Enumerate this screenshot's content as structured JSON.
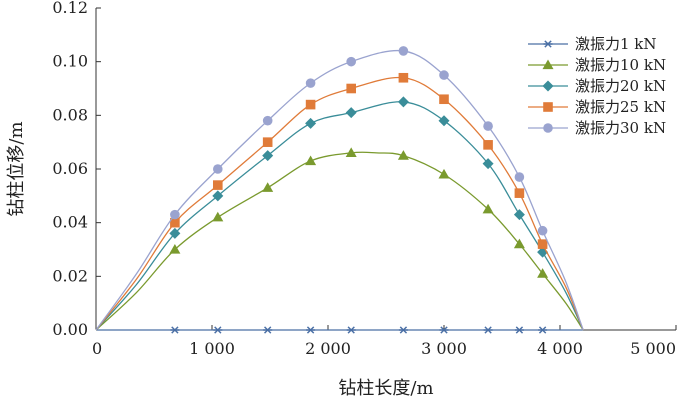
{
  "chart_data": {
    "type": "line",
    "xlabel": "钻柱长度/m",
    "ylabel": "钻柱位移/m",
    "xlim": [
      0,
      5000
    ],
    "ylim": [
      0,
      0.12
    ],
    "xticks": [
      0,
      1000,
      2000,
      3000,
      4000,
      5000
    ],
    "xtick_labels": [
      "0",
      "1 000",
      "2 000",
      "3 000",
      "4 000",
      "5 000"
    ],
    "yticks": [
      0,
      0.02,
      0.04,
      0.06,
      0.08,
      0.1,
      0.12
    ],
    "ytick_labels": [
      "0.00",
      "0.02",
      "0.04",
      "0.06",
      "0.08",
      "0.10",
      "0.12"
    ],
    "grid": false,
    "legend_position": "top-right",
    "series": [
      {
        "name": "激振力1 kN",
        "color": "#4a6fa5",
        "marker": "asterisk",
        "x": [
          0,
          680,
          1050,
          1480,
          1850,
          2200,
          2650,
          3000,
          3380,
          3650,
          3850,
          4200
        ],
        "y": [
          0,
          0,
          0,
          0,
          0,
          0,
          0,
          0,
          0,
          0,
          0,
          0
        ],
        "marker_x": [
          680,
          1050,
          1480,
          1850,
          2200,
          2650,
          3000,
          3380,
          3650,
          3850
        ]
      },
      {
        "name": "激振力10 kN",
        "color": "#7a9a2e",
        "marker": "triangle",
        "x": [
          0,
          350,
          680,
          1050,
          1480,
          1850,
          2200,
          2420,
          2650,
          3000,
          3380,
          3650,
          3850,
          4050,
          4200
        ],
        "y": [
          0,
          0.014,
          0.03,
          0.042,
          0.053,
          0.063,
          0.066,
          0.066,
          0.065,
          0.058,
          0.045,
          0.032,
          0.021,
          0.01,
          0
        ],
        "marker_x": [
          680,
          1050,
          1480,
          1850,
          2200,
          2650,
          3000,
          3380,
          3650,
          3850
        ]
      },
      {
        "name": "激振力20 kN",
        "color": "#3a8d99",
        "marker": "diamond",
        "x": [
          0,
          350,
          680,
          1050,
          1480,
          1850,
          2200,
          2650,
          3000,
          3380,
          3650,
          3850,
          4050,
          4200
        ],
        "y": [
          0,
          0.017,
          0.036,
          0.05,
          0.065,
          0.077,
          0.081,
          0.085,
          0.078,
          0.062,
          0.043,
          0.029,
          0.014,
          0
        ],
        "marker_x": [
          680,
          1050,
          1480,
          1850,
          2200,
          2650,
          3000,
          3380,
          3650,
          3850
        ]
      },
      {
        "name": "激振力25 kN",
        "color": "#e07b39",
        "marker": "square",
        "x": [
          0,
          350,
          680,
          1050,
          1480,
          1850,
          2200,
          2650,
          3000,
          3380,
          3650,
          3850,
          4050,
          4200
        ],
        "y": [
          0,
          0.019,
          0.04,
          0.054,
          0.07,
          0.084,
          0.09,
          0.094,
          0.086,
          0.069,
          0.051,
          0.032,
          0.016,
          0
        ],
        "marker_x": [
          680,
          1050,
          1480,
          1850,
          2200,
          2650,
          3000,
          3380,
          3650,
          3850
        ]
      },
      {
        "name": "激振力30 kN",
        "color": "#9aa3cf",
        "marker": "circle",
        "x": [
          0,
          350,
          680,
          1050,
          1480,
          1850,
          2200,
          2650,
          3000,
          3380,
          3650,
          3850,
          4050,
          4200
        ],
        "y": [
          0,
          0.021,
          0.043,
          0.06,
          0.078,
          0.092,
          0.1,
          0.104,
          0.095,
          0.076,
          0.057,
          0.037,
          0.018,
          0
        ],
        "marker_x": [
          680,
          1050,
          1480,
          1850,
          2200,
          2650,
          3000,
          3380,
          3650,
          3850
        ]
      }
    ]
  }
}
